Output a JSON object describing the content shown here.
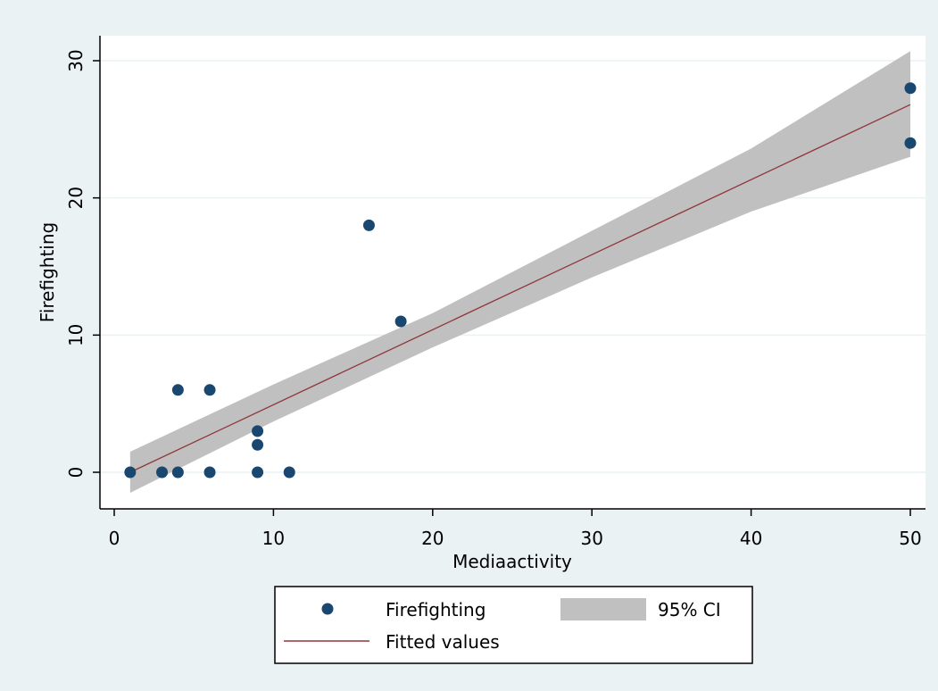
{
  "colors": {
    "outer_background": "#eaf2f3",
    "plot_background": "#ffffff",
    "grid": "#eaf2f3",
    "scatter": "#1a476f",
    "fit_line": "#90353b",
    "ci_band": "#c0c0c0"
  },
  "chart_data": {
    "type": "scatter",
    "title": "",
    "xlabel": "Mediaactivity",
    "ylabel": "Firefighting",
    "xlim": [
      0,
      50
    ],
    "ylim": [
      0,
      30
    ],
    "x_ticks": [
      0,
      10,
      20,
      30,
      40,
      50
    ],
    "y_ticks": [
      0,
      10,
      20,
      30
    ],
    "x_tick_labels": [
      "0",
      "10",
      "20",
      "30",
      "40",
      "50"
    ],
    "y_tick_labels": [
      "0",
      "10",
      "20",
      "30"
    ],
    "grid": true,
    "legend_position": "bottom",
    "series": [
      {
        "name": "Firefighting",
        "kind": "scatter",
        "points": [
          [
            1,
            0
          ],
          [
            3,
            0
          ],
          [
            4,
            0
          ],
          [
            4,
            6
          ],
          [
            6,
            6
          ],
          [
            6,
            0
          ],
          [
            9,
            0
          ],
          [
            9,
            2
          ],
          [
            9,
            3
          ],
          [
            11,
            0
          ],
          [
            16,
            18
          ],
          [
            18,
            11
          ],
          [
            50,
            28
          ],
          [
            50,
            24
          ]
        ]
      },
      {
        "name": "Fitted values",
        "kind": "line",
        "points": [
          [
            1,
            0
          ],
          [
            50,
            26.8
          ]
        ]
      },
      {
        "name": "95% CI",
        "kind": "band",
        "x": [
          1,
          10,
          20,
          30,
          40,
          50
        ],
        "lower": [
          -1.5,
          3.7,
          9.1,
          14.2,
          19.0,
          23.0
        ],
        "upper": [
          1.5,
          6.4,
          11.6,
          17.6,
          23.6,
          30.7
        ]
      }
    ]
  },
  "legend": {
    "items": [
      {
        "label": "Firefighting",
        "symbol": "dot"
      },
      {
        "label": "95% CI",
        "symbol": "band"
      },
      {
        "label": "Fitted values",
        "symbol": "line"
      }
    ]
  }
}
